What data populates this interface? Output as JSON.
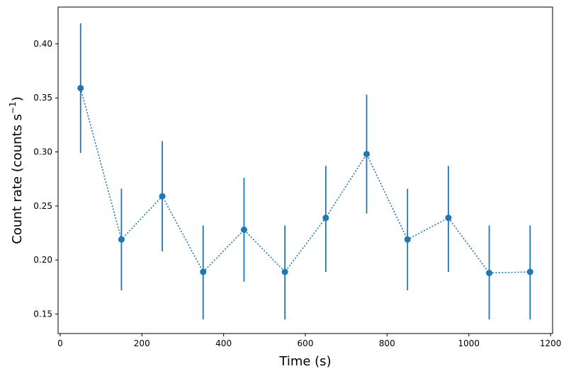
{
  "chart_data": {
    "type": "scatter",
    "xlabel": "Time (s)",
    "ylabel": {
      "prefix": "Count rate (counts s",
      "superscript": "−1",
      "suffix": ")"
    },
    "xlim": [
      -5,
      1205
    ],
    "ylim": [
      0.132,
      0.434
    ],
    "xticks": [
      {
        "value": 0,
        "label": "0"
      },
      {
        "value": 200,
        "label": "200"
      },
      {
        "value": 400,
        "label": "400"
      },
      {
        "value": 600,
        "label": "600"
      },
      {
        "value": 800,
        "label": "800"
      },
      {
        "value": 1000,
        "label": "1000"
      },
      {
        "value": 1200,
        "label": "1200"
      }
    ],
    "yticks": [
      {
        "value": 0.15,
        "label": "0.15"
      },
      {
        "value": 0.2,
        "label": "0.20"
      },
      {
        "value": 0.25,
        "label": "0.25"
      },
      {
        "value": 0.3,
        "label": "0.30"
      },
      {
        "value": 0.35,
        "label": "0.35"
      },
      {
        "value": 0.4,
        "label": "0.40"
      }
    ],
    "grid": false,
    "connector": "dotted",
    "color": "#1f77b4",
    "series": [
      {
        "x": [
          50,
          150,
          250,
          350,
          450,
          550,
          650,
          750,
          850,
          950,
          1050,
          1150
        ],
        "y": [
          0.359,
          0.219,
          0.259,
          0.189,
          0.228,
          0.189,
          0.239,
          0.298,
          0.219,
          0.239,
          0.188,
          0.189
        ],
        "y_low": [
          0.299,
          0.172,
          0.208,
          0.145,
          0.18,
          0.145,
          0.189,
          0.243,
          0.172,
          0.189,
          0.145,
          0.145
        ],
        "y_high": [
          0.419,
          0.266,
          0.31,
          0.232,
          0.276,
          0.232,
          0.287,
          0.353,
          0.266,
          0.287,
          0.232,
          0.232
        ]
      }
    ]
  }
}
